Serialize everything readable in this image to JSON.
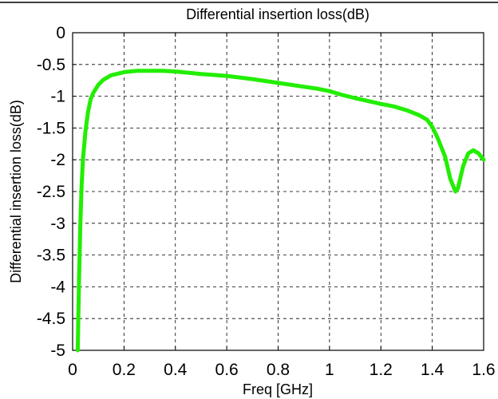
{
  "chart_data": {
    "type": "line",
    "title": "Differential insertion loss(dB)",
    "xlabel": "Freq [GHz]",
    "ylabel": "Differential insertion loss(dB)",
    "xlim": [
      0,
      1.6
    ],
    "ylim": [
      -5,
      0
    ],
    "xticks": [
      "0",
      "0.2",
      "0.4",
      "0.6",
      "0.8",
      "1",
      "1.2",
      "1.4",
      "1.6"
    ],
    "yticks": [
      "0",
      "-0.5",
      "-1",
      "-1.5",
      "-2",
      "-2.5",
      "-3",
      "-3.5",
      "-4",
      "-4.5",
      "-5"
    ],
    "grid": true,
    "series": [
      {
        "color": "#22ee00",
        "x": [
          0.02,
          0.025,
          0.03,
          0.035,
          0.04,
          0.05,
          0.06,
          0.07,
          0.08,
          0.1,
          0.12,
          0.15,
          0.2,
          0.25,
          0.3,
          0.35,
          0.4,
          0.45,
          0.5,
          0.6,
          0.7,
          0.8,
          0.9,
          0.95,
          1.0,
          1.05,
          1.1,
          1.2,
          1.25,
          1.3,
          1.35,
          1.38,
          1.4,
          1.42,
          1.45,
          1.47,
          1.49,
          1.5,
          1.52,
          1.54,
          1.56,
          1.58,
          1.6
        ],
        "y": [
          -5.0,
          -3.9,
          -3.0,
          -2.4,
          -2.0,
          -1.55,
          -1.25,
          -1.05,
          -0.95,
          -0.82,
          -0.74,
          -0.67,
          -0.62,
          -0.6,
          -0.6,
          -0.6,
          -0.61,
          -0.63,
          -0.65,
          -0.68,
          -0.73,
          -0.79,
          -0.85,
          -0.88,
          -0.92,
          -0.98,
          -1.03,
          -1.12,
          -1.16,
          -1.22,
          -1.3,
          -1.37,
          -1.48,
          -1.65,
          -1.95,
          -2.3,
          -2.5,
          -2.45,
          -2.1,
          -1.9,
          -1.85,
          -1.9,
          -2.0
        ]
      }
    ]
  }
}
